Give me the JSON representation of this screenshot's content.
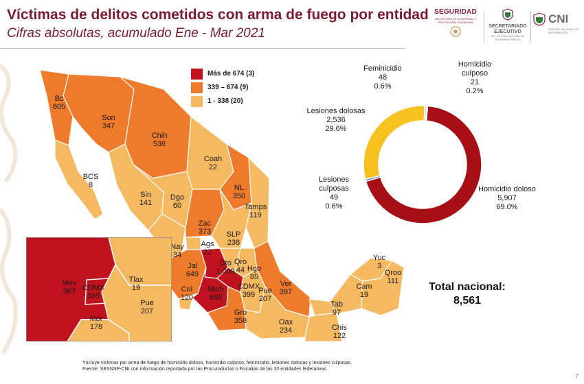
{
  "header": {
    "title": "Víctimas de delitos cometidos con arma de fuego por entidad",
    "subtitle": "Cifras absolutas, acumulado Ene - Mar 2021"
  },
  "logos": {
    "seguridad": "SEGURIDAD",
    "seguridad_sub": "SECRETARÍA DE SEGURIDAD Y PROTECCIÓN CIUDADANA",
    "secretariado": "SECRETARIADO EJECUTIVO",
    "secretariado_sub": "DEL SISTEMA NACIONAL DE SEGURIDAD PÚBLICA",
    "cni": "CNI",
    "cni_sub": "CENTRO NACIONAL DE INFORMACIÓN"
  },
  "colors": {
    "high": "#c1121f",
    "mid": "#ee7a2b",
    "low": "#f4b961",
    "homicidio_doloso": "#a70e15",
    "lesiones_dolosas": "#f7c21f",
    "feminicidio": "#d6dbe2",
    "homicidio_culposo": "#9aa3ad",
    "lesiones_culposas": "#5b8fbe"
  },
  "chart_data": [
    {
      "type": "choropleth",
      "title": "Víctimas de delitos cometidos con arma de fuego por entidad",
      "legend": [
        {
          "label": "Más de 674 (3)",
          "class": "high"
        },
        {
          "label": "339 – 674 (9)",
          "class": "mid"
        },
        {
          "label": "1 - 338 (20)",
          "class": "low"
        }
      ],
      "states": [
        {
          "abbr": "Bc",
          "value": "605"
        },
        {
          "abbr": "Son",
          "value": "347"
        },
        {
          "abbr": "Chih",
          "value": "536"
        },
        {
          "abbr": "BCS",
          "value": "8"
        },
        {
          "abbr": "Coah",
          "value": "22"
        },
        {
          "abbr": "NL",
          "value": "350"
        },
        {
          "abbr": "Sin",
          "value": "141"
        },
        {
          "abbr": "Dgo",
          "value": "60"
        },
        {
          "abbr": "Tamps",
          "value": "119"
        },
        {
          "abbr": "Zac",
          "value": "373"
        },
        {
          "abbr": "SLP",
          "value": "238"
        },
        {
          "abbr": "Nay",
          "value": "34"
        },
        {
          "abbr": "Ags",
          "value": "22"
        },
        {
          "abbr": "Jal",
          "value": "649"
        },
        {
          "abbr": "Gto",
          "value": "1,009"
        },
        {
          "abbr": "Qro",
          "value": "44"
        },
        {
          "abbr": "Hgo",
          "value": "85"
        },
        {
          "abbr": "Col",
          "value": "120"
        },
        {
          "abbr": "Mich",
          "value": "688"
        },
        {
          "abbr": "CDMX",
          "value": "399"
        },
        {
          "abbr": "Pue",
          "value": "207"
        },
        {
          "abbr": "Ver",
          "value": "397"
        },
        {
          "abbr": "Gro",
          "value": "358"
        },
        {
          "abbr": "Oax",
          "value": "234"
        },
        {
          "abbr": "Tab",
          "value": "97"
        },
        {
          "abbr": "Chis",
          "value": "122"
        },
        {
          "abbr": "Cam",
          "value": "19"
        },
        {
          "abbr": "Yuc",
          "value": "3"
        },
        {
          "abbr": "Qroo",
          "value": "111"
        }
      ],
      "inset": [
        {
          "abbr": "Mex",
          "value": "967"
        },
        {
          "abbr": "CDMX",
          "value": "399"
        },
        {
          "abbr": "Tlax",
          "value": "19"
        },
        {
          "abbr": "Mor",
          "value": "178"
        },
        {
          "abbr": "Pue",
          "value": "207"
        }
      ]
    },
    {
      "type": "pie",
      "subtype": "donut",
      "slices": [
        {
          "label": "Homicidio doloso",
          "count": "5,907",
          "value": 69.0,
          "pct": "69.0%",
          "color_key": "homicidio_doloso"
        },
        {
          "label": "Lesiones culposas",
          "count": "49",
          "value": 0.6,
          "pct": "0.6%",
          "color_key": "lesiones_culposas"
        },
        {
          "label": "Lesiones dolosas",
          "count": "2,536",
          "value": 29.6,
          "pct": "29.6%",
          "color_key": "lesiones_dolosas"
        },
        {
          "label": "Feminicidio",
          "count": "48",
          "value": 0.6,
          "pct": "0.6%",
          "color_key": "feminicidio"
        },
        {
          "label": "Homicidio culposo",
          "count": "21",
          "value": 0.2,
          "pct": "0.2%",
          "color_key": "homicidio_culposo"
        }
      ]
    }
  ],
  "total": {
    "label": "Total nacional:",
    "value": "8,561"
  },
  "footnote": {
    "line1": "*Incluye víctimas por arma de fuego de homicidio doloso, homicidio culposo, feminicidio, lesiones dolosas y lesiones culposas.",
    "line2": "Fuente: SESNSP-CNI con información reportada por las Procuradurías o Fiscalías de las 32 entidades federativas."
  },
  "page_number": "7"
}
